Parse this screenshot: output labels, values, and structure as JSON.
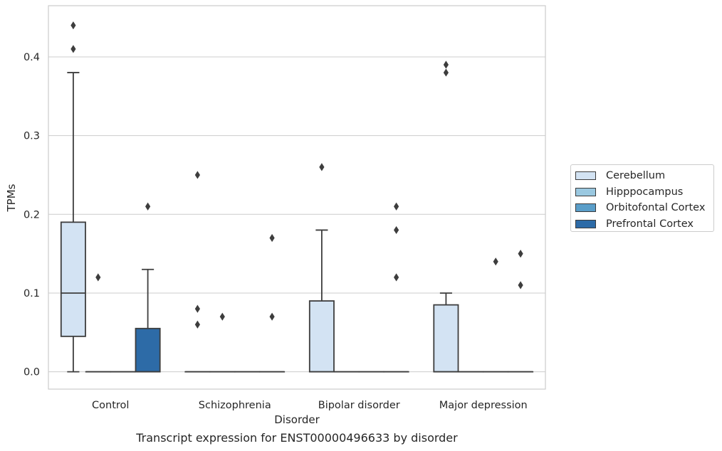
{
  "chart_data": {
    "type": "box",
    "title": "",
    "caption": "Transcript expression for ENST00000496633 by disorder",
    "xlabel": "Disorder",
    "ylabel": "TPMs",
    "ylim": [
      -0.022,
      0.465
    ],
    "yticks": [
      0.0,
      0.1,
      0.2,
      0.3,
      0.4
    ],
    "ytick_labels": [
      "0.0",
      "0.1",
      "0.2",
      "0.3",
      "0.4"
    ],
    "grid": "horizontal",
    "legend_position": "right",
    "categories": [
      "Control",
      "Schizophrenia",
      "Bipolar disorder",
      "Major depression"
    ],
    "series": [
      {
        "name": "Cerebellum",
        "color": "#d3e3f3",
        "boxes": [
          {
            "min": 0.0,
            "q1": 0.045,
            "median": 0.1,
            "q3": 0.19,
            "max": 0.38,
            "outliers": [
              0.41,
              0.44
            ]
          },
          {
            "min": 0.0,
            "q1": 0.0,
            "median": 0.0,
            "q3": 0.0,
            "max": 0.0,
            "outliers": [
              0.06,
              0.08,
              0.25
            ]
          },
          {
            "min": 0.0,
            "q1": 0.0,
            "median": 0.0,
            "q3": 0.09,
            "max": 0.18,
            "outliers": [
              0.26
            ]
          },
          {
            "min": 0.0,
            "q1": 0.0,
            "median": 0.0,
            "q3": 0.085,
            "max": 0.1,
            "outliers": [
              0.38,
              0.39
            ]
          }
        ]
      },
      {
        "name": "Hipppocampus",
        "color": "#9ac8e0",
        "boxes": [
          {
            "min": 0.0,
            "q1": 0.0,
            "median": 0.0,
            "q3": 0.0,
            "max": 0.0,
            "outliers": [
              0.12
            ]
          },
          {
            "min": 0.0,
            "q1": 0.0,
            "median": 0.0,
            "q3": 0.0,
            "max": 0.0,
            "outliers": [
              0.07
            ]
          },
          {
            "min": 0.0,
            "q1": 0.0,
            "median": 0.0,
            "q3": 0.0,
            "max": 0.0,
            "outliers": []
          },
          {
            "min": 0.0,
            "q1": 0.0,
            "median": 0.0,
            "q3": 0.0,
            "max": 0.0,
            "outliers": []
          }
        ]
      },
      {
        "name": "Orbitofontal Cortex",
        "color": "#5a9ec9",
        "boxes": [
          {
            "min": 0.0,
            "q1": 0.0,
            "median": 0.0,
            "q3": 0.0,
            "max": 0.0,
            "outliers": []
          },
          {
            "min": 0.0,
            "q1": 0.0,
            "median": 0.0,
            "q3": 0.0,
            "max": 0.0,
            "outliers": []
          },
          {
            "min": 0.0,
            "q1": 0.0,
            "median": 0.0,
            "q3": 0.0,
            "max": 0.0,
            "outliers": []
          },
          {
            "min": 0.0,
            "q1": 0.0,
            "median": 0.0,
            "q3": 0.0,
            "max": 0.0,
            "outliers": [
              0.14
            ]
          }
        ]
      },
      {
        "name": "Prefrontal Cortex",
        "color": "#2d6ba7",
        "boxes": [
          {
            "min": 0.0,
            "q1": 0.0,
            "median": 0.0,
            "q3": 0.055,
            "max": 0.13,
            "outliers": [
              0.21
            ]
          },
          {
            "min": 0.0,
            "q1": 0.0,
            "median": 0.0,
            "q3": 0.0,
            "max": 0.0,
            "outliers": [
              0.07,
              0.17
            ]
          },
          {
            "min": 0.0,
            "q1": 0.0,
            "median": 0.0,
            "q3": 0.0,
            "max": 0.0,
            "outliers": [
              0.12,
              0.18,
              0.21
            ]
          },
          {
            "min": 0.0,
            "q1": 0.0,
            "median": 0.0,
            "q3": 0.0,
            "max": 0.0,
            "outliers": [
              0.11,
              0.15
            ]
          }
        ]
      }
    ]
  }
}
